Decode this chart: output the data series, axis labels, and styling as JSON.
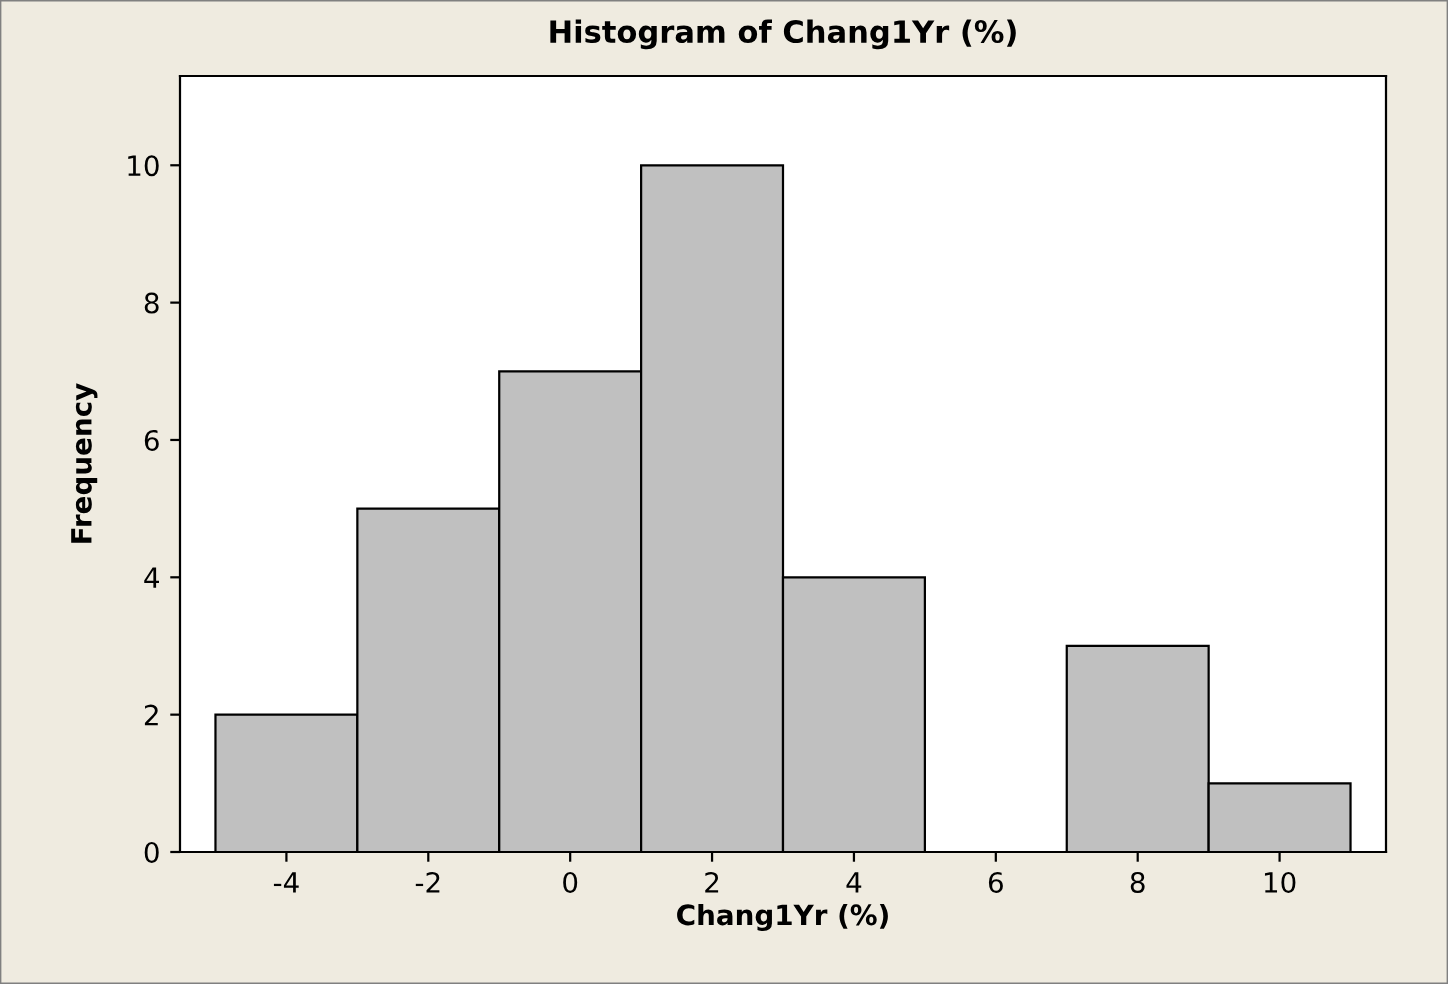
{
  "chart_data": {
    "type": "histogram",
    "title": "Histogram of Chang1Yr (%)",
    "xlabel": "Chang1Yr (%)",
    "ylabel": "Frequency",
    "bins": [
      -5,
      -3,
      -1,
      1,
      3,
      5,
      7,
      9,
      11
    ],
    "values": [
      2,
      5,
      7,
      10,
      4,
      0,
      3,
      1
    ],
    "color": "#c0c0c0",
    "xlim": [
      -5.5,
      11.5
    ],
    "xticks": [
      -4,
      -2,
      0,
      2,
      4,
      6,
      8,
      10
    ],
    "ylim": [
      0,
      11.3
    ],
    "yticks": [
      0,
      2,
      4,
      6,
      8,
      10
    ],
    "grid": false
  }
}
